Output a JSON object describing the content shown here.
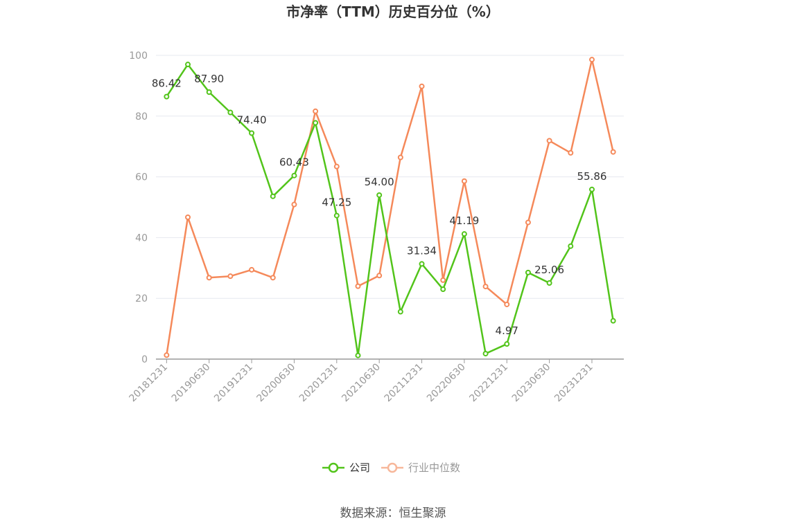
{
  "chart_data": {
    "type": "line",
    "title": "市净率（TTM）历史百分位（%）",
    "source": "数据来源：恒生聚源",
    "ylim": [
      0,
      100
    ],
    "yticks": [
      0,
      20,
      40,
      60,
      80,
      100
    ],
    "grid": true,
    "legend_position": "bottom",
    "xtick_labels": [
      "20181231",
      "20190630",
      "20191231",
      "20200630",
      "20201231",
      "20210630",
      "20211231",
      "20220630",
      "20221231",
      "20230630",
      "20231231"
    ],
    "x": [
      "20181231",
      "20190331",
      "20190630",
      "20190930",
      "20191231",
      "20200331",
      "20200630",
      "20200930",
      "20201231",
      "20210331",
      "20210630",
      "20210930",
      "20211231",
      "20220331",
      "20220630",
      "20220930",
      "20221231",
      "20230331",
      "20230630",
      "20230930",
      "20231231",
      "20240331"
    ],
    "series": [
      {
        "name": "公司",
        "color": "#52c41a",
        "values": [
          86.42,
          97.0,
          87.9,
          81.2,
          74.4,
          53.6,
          60.43,
          77.8,
          47.25,
          1.2,
          54.0,
          15.6,
          31.34,
          23.0,
          41.19,
          1.8,
          4.97,
          28.5,
          25.06,
          37.2,
          55.86,
          12.6
        ],
        "labels": [
          "86.42",
          "",
          "87.90",
          "",
          "74.40",
          "",
          "60.43",
          "",
          "47.25",
          "",
          "54.00",
          "",
          "31.34",
          "",
          "41.19",
          "",
          "4.97",
          "",
          "25.06",
          "",
          "55.86",
          ""
        ]
      },
      {
        "name": "行业中位数",
        "color": "#f5895a",
        "values": [
          1.3,
          46.7,
          26.8,
          27.3,
          29.4,
          26.8,
          50.9,
          81.6,
          63.4,
          24.0,
          27.5,
          66.4,
          89.8,
          26.0,
          58.6,
          23.9,
          18.0,
          45.0,
          71.9,
          67.9,
          98.6,
          68.2
        ]
      }
    ]
  }
}
